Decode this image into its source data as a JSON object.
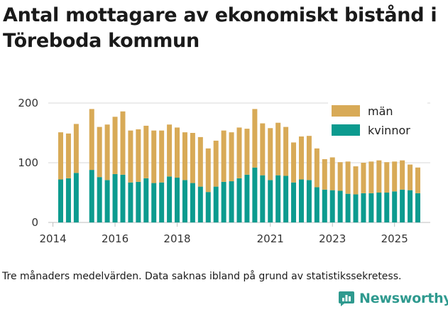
{
  "title": "Antal mottagare av ekonomiskt bistånd i Töreboda kommun",
  "footnote": "Tre månaders medelvärden. Data saknas ibland på grund av statistikssekretess.",
  "brand": {
    "name": "Newsworthy",
    "icon": "newsworthy-logo-icon"
  },
  "colors": {
    "man": "#d8aa57",
    "kvinnor": "#0c9b8f",
    "grid": "#d9d9d9",
    "brand": "#2f9a8f"
  },
  "chart_data": {
    "type": "bar",
    "stacked": true,
    "title": "Antal mottagare av ekonomiskt bistånd i Töreboda kommun",
    "xlabel": "",
    "ylabel": "",
    "ylim": [
      0,
      200
    ],
    "yticks": [
      "0",
      "100",
      "200"
    ],
    "xticks": [
      {
        "label": "2014",
        "at": 2014.0
      },
      {
        "label": "2016",
        "at": 2016.0
      },
      {
        "label": "2018",
        "at": 2018.0
      },
      {
        "label": "2021",
        "at": 2021.0
      },
      {
        "label": "2023",
        "at": 2023.0
      },
      {
        "label": "2025",
        "at": 2025.0
      }
    ],
    "legend": [
      {
        "key": "man",
        "label": "män"
      },
      {
        "key": "kvinnor",
        "label": "kvinnor"
      }
    ],
    "legend_position": "top-right",
    "x": [
      2014.25,
      2014.5,
      2014.75,
      null,
      2015.25,
      2015.5,
      2015.75,
      2016.0,
      2016.25,
      2016.5,
      2016.75,
      2017.0,
      2017.25,
      2017.5,
      2017.75,
      2018.0,
      2018.25,
      2018.5,
      2018.75,
      2019.0,
      2019.25,
      2019.5,
      2019.75,
      2020.0,
      2020.25,
      2020.5,
      2020.75,
      2021.0,
      2021.25,
      2021.5,
      2021.75,
      2022.0,
      2022.25,
      2022.5,
      2022.75,
      2023.0,
      2023.25,
      2023.5,
      2023.75,
      2024.0,
      2024.25,
      2024.5,
      2024.75,
      2025.0,
      2025.25,
      2025.5,
      2025.75
    ],
    "series": [
      {
        "name": "kvinnor",
        "values": [
          72,
          74,
          83,
          null,
          88,
          76,
          71,
          81,
          80,
          67,
          68,
          74,
          66,
          67,
          77,
          75,
          71,
          66,
          60,
          51,
          60,
          68,
          69,
          74,
          80,
          92,
          79,
          71,
          79,
          78,
          67,
          72,
          71,
          59,
          55,
          54,
          53,
          48,
          47,
          49,
          49,
          50,
          50,
          52,
          55,
          54,
          49
        ]
      },
      {
        "name": "man",
        "values": [
          79,
          75,
          82,
          null,
          102,
          84,
          93,
          96,
          106,
          87,
          88,
          88,
          88,
          87,
          87,
          84,
          80,
          84,
          83,
          73,
          77,
          86,
          82,
          85,
          77,
          98,
          87,
          87,
          88,
          82,
          67,
          72,
          74,
          65,
          51,
          55,
          48,
          54,
          47,
          51,
          53,
          54,
          51,
          50,
          49,
          43,
          43
        ]
      }
    ]
  }
}
